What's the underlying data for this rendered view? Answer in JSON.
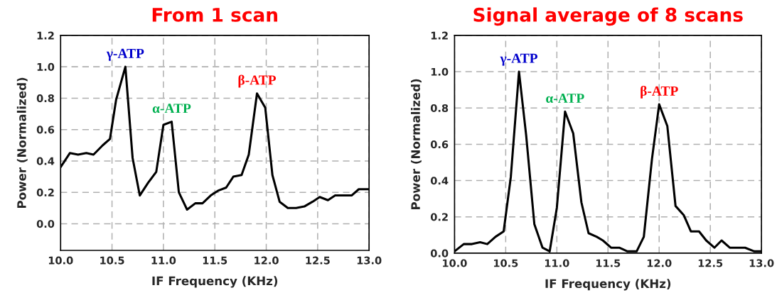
{
  "chart_data": [
    {
      "type": "line",
      "title": "From 1 scan",
      "xlabel": "IF Frequency (KHz)",
      "ylabel": "Power (Normalized)",
      "xlim": [
        10.0,
        13.0
      ],
      "xticks": [
        {
          "value": 10.0,
          "label": "10.0"
        },
        {
          "value": 10.5,
          "label": "10.5"
        },
        {
          "value": 11.0,
          "label": "11.0"
        },
        {
          "value": 11.5,
          "label": "11.5"
        },
        {
          "value": 12.0,
          "label": "12.0"
        },
        {
          "value": 12.5,
          "label": "12.5"
        },
        {
          "value": 13.0,
          "label": "13.0"
        }
      ],
      "ylim": [
        -0.17,
        1.2
      ],
      "yticks": [
        {
          "value": 0.0,
          "label": "0.0"
        },
        {
          "value": 0.2,
          "label": "0.2"
        },
        {
          "value": 0.4,
          "label": "0.4"
        },
        {
          "value": 0.6,
          "label": "0.6"
        },
        {
          "value": 0.8,
          "label": "0.8"
        },
        {
          "value": 1.0,
          "label": "1.0"
        },
        {
          "value": 1.2,
          "label": "1.2"
        }
      ],
      "grid": true,
      "marker": "none",
      "line_style": "solid",
      "series": [
        {
          "color": "#000000",
          "x": [
            10.0,
            10.09,
            10.17,
            10.25,
            10.32,
            10.41,
            10.48,
            10.54,
            10.63,
            10.7,
            10.77,
            10.85,
            10.93,
            11.0,
            11.08,
            11.15,
            11.23,
            11.31,
            11.38,
            11.46,
            11.53,
            11.61,
            11.68,
            11.76,
            11.83,
            11.91,
            11.99,
            12.06,
            12.13,
            12.21,
            12.29,
            12.37,
            12.45,
            12.52,
            12.6,
            12.67,
            12.75,
            12.83,
            12.9,
            13.0
          ],
          "values": [
            0.36,
            0.45,
            0.44,
            0.45,
            0.44,
            0.5,
            0.54,
            0.79,
            1.0,
            0.42,
            0.18,
            0.26,
            0.33,
            0.63,
            0.65,
            0.2,
            0.09,
            0.13,
            0.13,
            0.18,
            0.21,
            0.23,
            0.3,
            0.31,
            0.44,
            0.83,
            0.74,
            0.31,
            0.14,
            0.1,
            0.1,
            0.11,
            0.14,
            0.17,
            0.15,
            0.18,
            0.18,
            0.18,
            0.22,
            0.22
          ]
        }
      ],
      "annotations": [
        {
          "text": "γ-ATP",
          "x": 10.63,
          "y": 1.0
        },
        {
          "text": "α-ATP",
          "x": 11.08,
          "y": 0.65
        },
        {
          "text": "β-ATP",
          "x": 11.91,
          "y": 0.83
        }
      ]
    },
    {
      "type": "line",
      "title": "Signal average of 8 scans",
      "xlabel": "IF Frequency (KHz)",
      "ylabel": "Power (Normalized)",
      "xlim": [
        10.0,
        13.0
      ],
      "xticks": [
        {
          "value": 10.0,
          "label": "10.0"
        },
        {
          "value": 10.5,
          "label": "10.5"
        },
        {
          "value": 11.0,
          "label": "11.0"
        },
        {
          "value": 11.5,
          "label": "11.5"
        },
        {
          "value": 12.0,
          "label": "12.0"
        },
        {
          "value": 12.5,
          "label": "12.5"
        },
        {
          "value": 13.0,
          "label": "13.0"
        }
      ],
      "ylim": [
        0.0,
        1.2
      ],
      "yticks": [
        {
          "value": 0.0,
          "label": "0.0"
        },
        {
          "value": 0.2,
          "label": "0.2"
        },
        {
          "value": 0.4,
          "label": "0.4"
        },
        {
          "value": 0.6,
          "label": "0.6"
        },
        {
          "value": 0.8,
          "label": "0.8"
        },
        {
          "value": 1.0,
          "label": "1.0"
        },
        {
          "value": 1.2,
          "label": "1.2"
        }
      ],
      "grid": true,
      "marker": "none",
      "line_style": "solid",
      "series": [
        {
          "color": "#000000",
          "x": [
            10.0,
            10.09,
            10.17,
            10.25,
            10.32,
            10.4,
            10.48,
            10.55,
            10.63,
            10.7,
            10.78,
            10.86,
            10.93,
            11.0,
            11.08,
            11.16,
            11.24,
            11.31,
            11.39,
            11.45,
            11.53,
            11.61,
            11.69,
            11.78,
            11.85,
            11.93,
            12.0,
            12.08,
            12.16,
            12.24,
            12.31,
            12.39,
            12.46,
            12.54,
            12.61,
            12.69,
            12.77,
            12.84,
            12.93,
            13.0
          ],
          "values": [
            0.01,
            0.05,
            0.05,
            0.06,
            0.05,
            0.09,
            0.12,
            0.42,
            1.0,
            0.65,
            0.16,
            0.03,
            0.01,
            0.25,
            0.78,
            0.66,
            0.28,
            0.11,
            0.09,
            0.07,
            0.03,
            0.03,
            0.01,
            0.01,
            0.09,
            0.52,
            0.82,
            0.7,
            0.26,
            0.21,
            0.12,
            0.12,
            0.07,
            0.03,
            0.07,
            0.03,
            0.03,
            0.03,
            0.01,
            0.01
          ]
        }
      ],
      "annotations": [
        {
          "text": "γ-ATP",
          "x": 10.63,
          "y": 1.0
        },
        {
          "text": "α-ATP",
          "x": 11.08,
          "y": 0.78
        },
        {
          "text": "β-ATP",
          "x": 12.0,
          "y": 0.82
        }
      ]
    }
  ]
}
